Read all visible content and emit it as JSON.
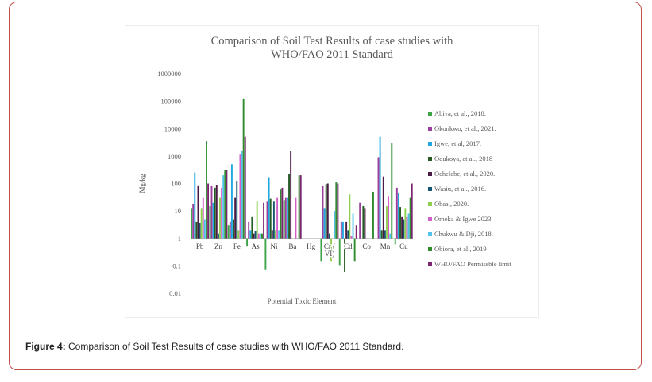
{
  "caption": {
    "label": "Figure 4:",
    "text": "Comparison of Soil Test Results of case studies with WHO/FAO 2011 Standard."
  },
  "chart_data": {
    "type": "bar",
    "title_lines": [
      "Comparison of Soil Test Results of case studies with",
      "WHO/FAO 2011  Standard"
    ],
    "xlabel": "Potential Toxic Element",
    "ylabel": "Mg/kg",
    "yscale": "log",
    "ylim": [
      0.01,
      1000000
    ],
    "y_ticks": [
      "0.01",
      "0.1",
      "1",
      "10",
      "100",
      "1000",
      "10000",
      "100000",
      "1000000"
    ],
    "categories": [
      "Pb",
      "Zn",
      "Fe",
      "As",
      "Ni",
      "Ba",
      "Hg",
      "Cr ( VI)",
      "Cd",
      "Co",
      "Mn",
      "Cu"
    ],
    "legend_position": "right",
    "series": [
      {
        "name": "Abiya, et al., 2018.",
        "color": "#3fa448",
        "values": [
          12,
          15,
          3,
          0.5,
          0.07,
          25,
          null,
          0.15,
          0.1,
          null,
          null,
          0.6
        ]
      },
      {
        "name": "Okonkwo, et al., 2021.",
        "color": "#9a3f9a",
        "values": [
          18,
          80,
          4,
          4,
          22,
          30,
          null,
          80,
          4,
          20,
          900,
          70
        ]
      },
      {
        "name": "Igwe, et al, 2017.",
        "color": "#1ea7e0",
        "values": [
          250,
          20,
          500,
          2,
          170,
          30,
          null,
          12,
          4,
          null,
          5000,
          45
        ]
      },
      {
        "name": "Odukoya, et al., 2018",
        "color": "#235b23",
        "values": [
          4,
          70,
          5,
          6,
          28,
          220,
          null,
          95,
          0.06,
          15,
          2,
          14
        ]
      },
      {
        "name": "Ochelebe, et al., 2020.",
        "color": "#4b1a44",
        "values": [
          80,
          90,
          30,
          1.5,
          2,
          1500,
          null,
          100,
          4,
          12,
          180,
          6
        ]
      },
      {
        "name": "Wasiu, et al., 2016.",
        "color": "#16566e",
        "values": [
          3.5,
          1.5,
          120,
          1.8,
          22,
          null,
          null,
          1.5,
          2,
          null,
          2,
          5
        ]
      },
      {
        "name": "Obasi, 2020.",
        "color": "#8ecf4e",
        "values": [
          12,
          30,
          2,
          22,
          2,
          null,
          null,
          0.15,
          40,
          null,
          15,
          12
        ]
      },
      {
        "name": "Omeka & Igwe 2023",
        "color": "#d25fc8",
        "values": [
          30,
          70,
          1200,
          1.5,
          30,
          30,
          null,
          null,
          1.2,
          null,
          35,
          6
        ]
      },
      {
        "name": "Chukwu & Dji, 2018.",
        "color": "#4fc3e8",
        "values": [
          5,
          200,
          1500,
          1.5,
          2,
          null,
          null,
          10,
          8,
          null,
          1.5,
          8
        ]
      },
      {
        "name": "Obiora, et al., 2019",
        "color": "#2e8b2e",
        "values": [
          3500,
          300,
          120000,
          1.5,
          60,
          200,
          null,
          110,
          0.15,
          50,
          3000,
          30
        ]
      },
      {
        "name": "WHO/FAO Permissble limit",
        "color": "#7b2470",
        "values": [
          100,
          300,
          5000,
          20,
          70,
          200,
          null,
          100,
          3,
          null,
          null,
          100
        ]
      }
    ]
  }
}
